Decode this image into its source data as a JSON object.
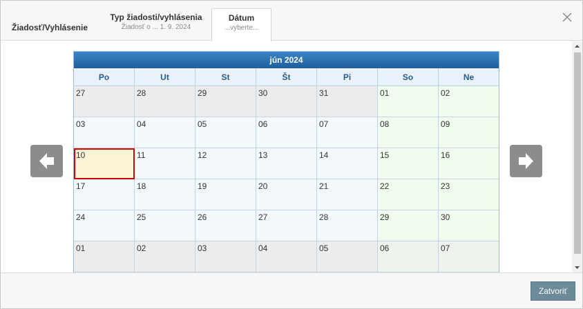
{
  "header": {
    "title": "Žiadosť/Vyhlásenie",
    "tabs": [
      {
        "label": "Typ žiadosti/vyhlásenia",
        "sub": "Žiadosť o ... 1. 9. 2024"
      },
      {
        "label": "Dátum",
        "sub": "...vyberte..."
      }
    ],
    "close_icon": "close-icon"
  },
  "calendar": {
    "title": "jún 2024",
    "weekdays": [
      "Po",
      "Ut",
      "St",
      "Št",
      "Pi",
      "So",
      "Ne"
    ],
    "weeks": [
      [
        "27",
        "28",
        "29",
        "30",
        "31",
        "01",
        "02"
      ],
      [
        "03",
        "04",
        "05",
        "06",
        "07",
        "08",
        "09"
      ],
      [
        "10",
        "11",
        "12",
        "13",
        "14",
        "15",
        "16"
      ],
      [
        "17",
        "18",
        "19",
        "20",
        "21",
        "22",
        "23"
      ],
      [
        "24",
        "25",
        "26",
        "27",
        "28",
        "29",
        "30"
      ],
      [
        "01",
        "02",
        "03",
        "04",
        "05",
        "06",
        "07"
      ]
    ],
    "colors": {
      "header": "#2a6fb0",
      "today_outline": "#d40000",
      "today_fill": "#fdf4d8",
      "weekend_fill": "#f0fcee",
      "other_month_fill": "#ececec"
    }
  },
  "nav": {
    "prev_icon": "arrow-left-icon",
    "next_icon": "arrow-right-icon"
  },
  "footer": {
    "close_label": "Zatvoriť"
  }
}
